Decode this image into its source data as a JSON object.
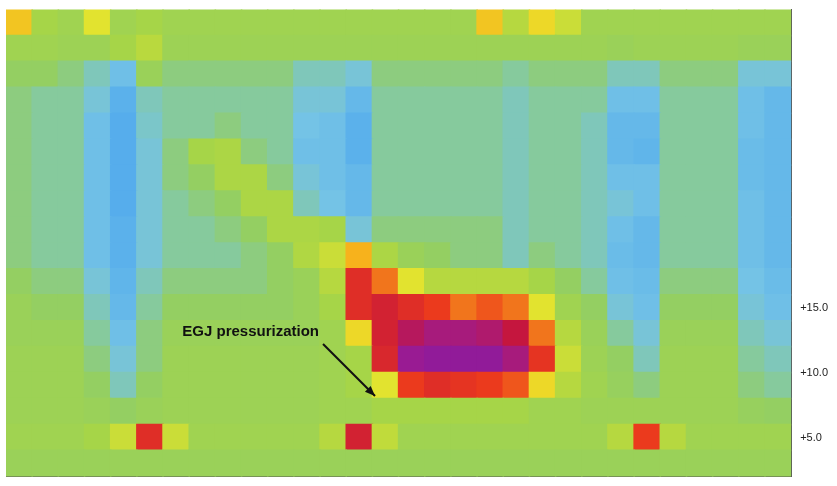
{
  "chart_data": {
    "type": "heatmap",
    "x": [
      0.5,
      1.5,
      2.5,
      3.5,
      4.5,
      5.5,
      6.5,
      7.5,
      8.5,
      9.5,
      10.5,
      11.5,
      12.5,
      13.5,
      14.5,
      15.5,
      16.5,
      17.5,
      18.5,
      19.5,
      20.5,
      21.5,
      22.5,
      23.5,
      24.5,
      25.5,
      26.5,
      27.5,
      28.5,
      29.5
    ],
    "y": [
      37,
      35,
      33,
      31,
      29,
      27,
      25,
      23,
      21,
      19,
      17,
      15,
      13,
      11,
      9,
      7,
      5,
      3
    ],
    "z": [
      [
        55,
        30,
        28,
        45,
        28,
        30,
        28,
        28,
        28,
        28,
        28,
        28,
        28,
        28,
        28,
        28,
        28,
        28,
        55,
        35,
        50,
        40,
        28,
        28,
        28,
        28,
        28,
        28,
        28,
        28
      ],
      [
        28,
        28,
        27,
        27,
        30,
        36,
        27,
        27,
        27,
        27,
        27,
        27,
        27,
        27,
        27,
        27,
        27,
        27,
        27,
        27,
        27,
        27,
        27,
        26,
        27,
        27,
        27,
        27,
        26,
        26
      ],
      [
        24,
        24,
        22,
        18,
        14,
        26,
        22,
        22,
        22,
        22,
        22,
        18,
        18,
        16,
        22,
        22,
        22,
        22,
        22,
        20,
        22,
        22,
        22,
        18,
        18,
        22,
        22,
        22,
        16,
        16
      ],
      [
        22,
        20,
        20,
        16,
        10,
        18,
        20,
        20,
        20,
        20,
        20,
        16,
        16,
        12,
        20,
        20,
        20,
        20,
        20,
        18,
        20,
        20,
        20,
        14,
        14,
        20,
        20,
        20,
        14,
        12
      ],
      [
        22,
        20,
        20,
        14,
        9,
        17,
        20,
        20,
        22,
        20,
        20,
        15,
        14,
        10,
        20,
        20,
        20,
        20,
        20,
        18,
        20,
        20,
        18,
        12,
        12,
        20,
        20,
        20,
        14,
        12
      ],
      [
        22,
        20,
        20,
        14,
        9,
        16,
        22,
        30,
        32,
        22,
        20,
        14,
        14,
        10,
        20,
        20,
        20,
        20,
        20,
        18,
        20,
        20,
        18,
        12,
        11,
        20,
        20,
        20,
        13,
        12
      ],
      [
        22,
        20,
        20,
        14,
        9,
        16,
        22,
        24,
        32,
        32,
        22,
        16,
        14,
        12,
        20,
        20,
        20,
        20,
        20,
        18,
        20,
        20,
        18,
        14,
        14,
        20,
        20,
        20,
        13,
        12
      ],
      [
        22,
        20,
        20,
        14,
        9,
        16,
        20,
        22,
        24,
        32,
        32,
        18,
        15,
        12,
        20,
        20,
        20,
        20,
        20,
        18,
        20,
        20,
        18,
        16,
        14,
        20,
        20,
        20,
        14,
        12
      ],
      [
        22,
        20,
        20,
        14,
        10,
        16,
        20,
        20,
        22,
        24,
        32,
        32,
        30,
        16,
        22,
        22,
        22,
        22,
        22,
        18,
        20,
        20,
        18,
        14,
        12,
        20,
        20,
        20,
        14,
        12
      ],
      [
        22,
        20,
        20,
        14,
        10,
        16,
        20,
        20,
        20,
        22,
        24,
        33,
        40,
        60,
        32,
        26,
        24,
        22,
        22,
        18,
        22,
        20,
        18,
        13,
        12,
        20,
        20,
        20,
        14,
        12
      ],
      [
        24,
        22,
        22,
        16,
        11,
        18,
        22,
        22,
        22,
        22,
        24,
        26,
        35,
        90,
        70,
        45,
        35,
        35,
        35,
        35,
        30,
        24,
        20,
        14,
        13,
        22,
        22,
        22,
        15,
        13
      ],
      [
        26,
        24,
        24,
        18,
        12,
        20,
        24,
        24,
        24,
        24,
        24,
        26,
        30,
        90,
        100,
        90,
        80,
        70,
        75,
        70,
        45,
        28,
        24,
        16,
        14,
        24,
        24,
        24,
        16,
        14
      ],
      [
        26,
        26,
        26,
        20,
        14,
        22,
        26,
        26,
        26,
        26,
        26,
        26,
        28,
        50,
        100,
        120,
        130,
        130,
        125,
        110,
        70,
        35,
        26,
        20,
        16,
        26,
        26,
        26,
        18,
        16
      ],
      [
        27,
        27,
        27,
        22,
        16,
        22,
        27,
        27,
        27,
        27,
        27,
        27,
        28,
        30,
        95,
        140,
        145,
        145,
        145,
        130,
        85,
        40,
        27,
        24,
        18,
        27,
        27,
        27,
        20,
        18
      ],
      [
        27,
        27,
        27,
        24,
        18,
        24,
        27,
        27,
        27,
        27,
        27,
        27,
        28,
        30,
        45,
        80,
        90,
        85,
        80,
        75,
        50,
        35,
        28,
        25,
        22,
        27,
        27,
        27,
        22,
        20
      ],
      [
        27,
        27,
        27,
        26,
        24,
        26,
        27,
        27,
        27,
        27,
        27,
        27,
        28,
        28,
        30,
        30,
        30,
        30,
        30,
        30,
        28,
        28,
        27,
        27,
        27,
        27,
        27,
        27,
        25,
        24
      ],
      [
        28,
        28,
        28,
        30,
        40,
        90,
        40,
        28,
        28,
        28,
        28,
        28,
        35,
        100,
        38,
        28,
        28,
        28,
        28,
        28,
        28,
        28,
        28,
        35,
        80,
        35,
        28,
        28,
        28,
        28
      ],
      [
        26,
        26,
        26,
        26,
        26,
        26,
        26,
        26,
        26,
        26,
        26,
        26,
        26,
        26,
        26,
        26,
        26,
        26,
        26,
        26,
        26,
        26,
        26,
        26,
        26,
        26,
        26,
        26,
        26,
        26
      ]
    ],
    "xlim": [
      0,
      30
    ],
    "ylim": [
      2,
      38
    ],
    "yticks": [
      {
        "value": 5,
        "label": "+5.0"
      },
      {
        "value": 10,
        "label": "+10.0"
      },
      {
        "value": 15,
        "label": "+15.0"
      }
    ],
    "color_range": [
      0,
      150
    ],
    "tick_labels": "y",
    "grid": false,
    "annotations": [
      {
        "text": "EGJ pressurization",
        "x": 14.1,
        "y": 8.2
      }
    ]
  }
}
